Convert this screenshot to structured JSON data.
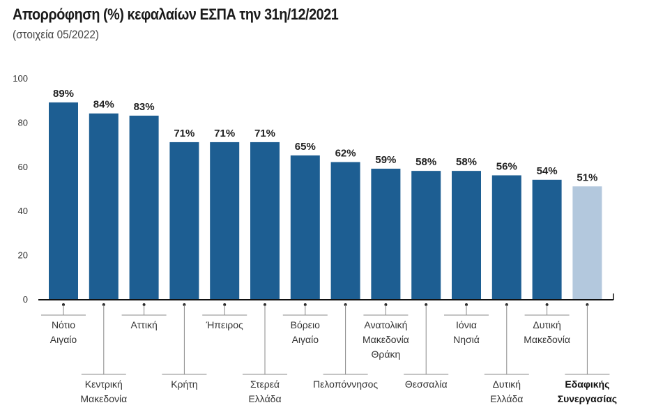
{
  "title": "Απορρόφηση (%) κεφαλαίων ΕΣΠΑ την 31η/12/2021",
  "subtitle": "(στοιχεία 05/2022)",
  "chart_data": {
    "type": "bar",
    "title": "Απορρόφηση (%) κεφαλαίων ΕΣΠΑ την 31η/12/2021",
    "subtitle": "(στοιχεία 05/2022)",
    "categories": [
      [
        "Νότιο",
        "Αιγαίο"
      ],
      [
        "Κεντρική",
        "Μακεδονία"
      ],
      [
        "Αττική"
      ],
      [
        "Κρήτη"
      ],
      [
        "Ήπειρος"
      ],
      [
        "Στερεά",
        "Ελλάδα"
      ],
      [
        "Βόρειο",
        "Αιγαίο"
      ],
      [
        "Πελοπόννησος"
      ],
      [
        "Ανατολική",
        "Μακεδονία",
        "Θράκη"
      ],
      [
        "Θεσσαλία"
      ],
      [
        "Ιόνια",
        "Νησιά"
      ],
      [
        "Δυτική",
        "Ελλάδα"
      ],
      [
        "Δυτική",
        "Μακεδονία"
      ],
      [
        "Εδαφικής",
        "Συνεργασίας"
      ]
    ],
    "values": [
      89,
      84,
      83,
      71,
      71,
      71,
      65,
      62,
      59,
      58,
      58,
      56,
      54,
      51
    ],
    "data_labels": [
      "89%",
      "84%",
      "83%",
      "71%",
      "71%",
      "71%",
      "65%",
      "62%",
      "59%",
      "58%",
      "58%",
      "56%",
      "54%",
      "51%"
    ],
    "ylim": [
      0,
      100
    ],
    "yticks": [
      0,
      20,
      40,
      60,
      80,
      100
    ],
    "grid": false,
    "xlabel": "",
    "ylabel": "",
    "colors": {
      "bar": "#1d5e92",
      "highlight_bar": "#b3c8dd"
    },
    "highlight_index": 13
  }
}
